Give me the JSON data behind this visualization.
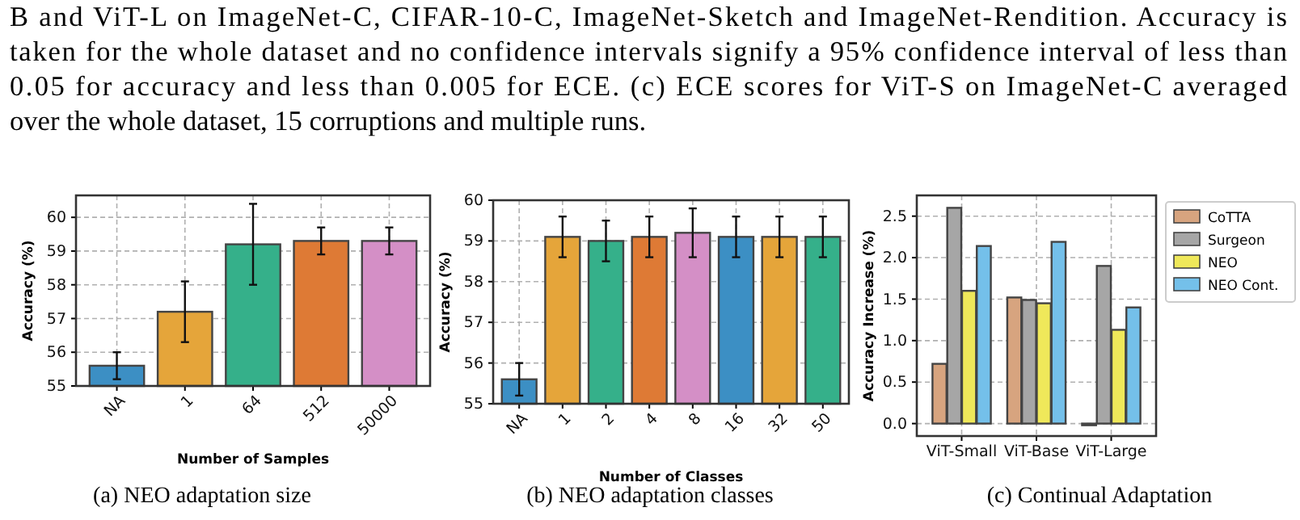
{
  "chart_data": [
    {
      "type": "bar",
      "xlabel": "Number of Samples",
      "ylabel": "Accuracy (%)",
      "categories": [
        "NA",
        "1",
        "64",
        "512",
        "50000"
      ],
      "values": [
        55.6,
        57.2,
        59.2,
        59.3,
        59.3
      ],
      "colors": [
        "#3c8fc4",
        "#e5a53a",
        "#35b08a",
        "#de7a35",
        "#d48fc6"
      ],
      "errors": [
        [
          55.2,
          56.0
        ],
        [
          56.3,
          58.1
        ],
        [
          58.0,
          60.4
        ],
        [
          58.9,
          59.7
        ],
        [
          58.9,
          59.7
        ]
      ],
      "ylim": [
        55,
        60.65
      ],
      "yticks": [
        55,
        56,
        57,
        58,
        59,
        60
      ],
      "grid": true,
      "annotations": [
        "B and ViT-L on ImageNet-C, CIFAR-10-C, ImageNet-Sketch and ImageNet-Rendition. Accuracy is",
        "taken for the whole dataset and no confidence intervals signify a 95% confidence interval of less than",
        "0.05 for accuracy and less than 0.005 for ECE. (c) ECE scores for ViT-S on ImageNet-C averaged",
        "over the whole dataset, 15 corruptions and multiple runs.",
        "(a) NEO adaptation size"
      ]
    },
    {
      "type": "bar",
      "xlabel": "Number of Classes",
      "ylabel": "Accuracy (%)",
      "categories": [
        "NA",
        "1",
        "2",
        "4",
        "8",
        "16",
        "32",
        "50"
      ],
      "values": [
        55.6,
        59.1,
        59.0,
        59.1,
        59.2,
        59.1,
        59.1,
        59.1
      ],
      "colors": [
        "#3c8fc4",
        "#e5a53a",
        "#35b08a",
        "#de7a35",
        "#d48fc6",
        "#3c8fc4",
        "#e5a53a",
        "#35b08a"
      ],
      "errors": [
        [
          55.2,
          56.0
        ],
        [
          58.6,
          59.6
        ],
        [
          58.5,
          59.5
        ],
        [
          58.6,
          59.6
        ],
        [
          58.6,
          59.8
        ],
        [
          58.6,
          59.6
        ],
        [
          58.6,
          59.6
        ],
        [
          58.6,
          59.6
        ]
      ],
      "ylim": [
        55,
        60
      ],
      "yticks": [
        55,
        56,
        57,
        58,
        59,
        60
      ],
      "grid": true,
      "annotations": [
        "(b) NEO adaptation classes"
      ]
    },
    {
      "type": "bar",
      "ylabel": "Accuracy Increase (%)",
      "categories": [
        "ViT-Small",
        "ViT-Base",
        "ViT-Large"
      ],
      "series": [
        {
          "name": "CoTTA",
          "color": "#d7a47f",
          "values": [
            0.72,
            1.52,
            -0.02
          ]
        },
        {
          "name": "Surgeon",
          "color": "#a6a6a6",
          "values": [
            2.6,
            1.49,
            1.9
          ]
        },
        {
          "name": "NEO",
          "color": "#efe85a",
          "values": [
            1.6,
            1.45,
            1.13
          ]
        },
        {
          "name": "NEO Cont.",
          "color": "#74c0ea",
          "values": [
            2.14,
            2.19,
            1.4
          ]
        }
      ],
      "ylim": [
        -0.15,
        2.75
      ],
      "yticks": [
        {
          "value": 0,
          "label": "0.0"
        },
        {
          "value": 0.5,
          "label": "0.5"
        },
        {
          "value": 1,
          "label": "1.0"
        },
        {
          "value": 1.5,
          "label": "1.5"
        },
        {
          "value": 2,
          "label": "2.0"
        },
        {
          "value": 2.5,
          "label": "2.5"
        }
      ],
      "grid": true,
      "legend": "right",
      "annotations": [
        "(c) Continual Adaptation"
      ]
    }
  ]
}
